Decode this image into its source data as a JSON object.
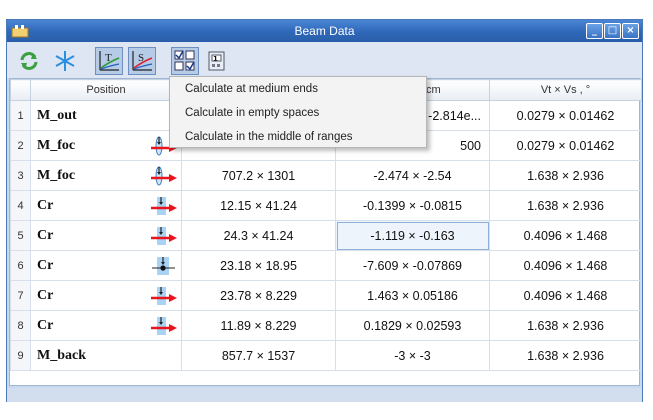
{
  "window": {
    "title": "Beam Data"
  },
  "titlebar_buttons": {
    "minimize": "_",
    "maximize": "□",
    "close": "×"
  },
  "toolbar": {
    "buttons": [
      {
        "icon": "refresh-icon"
      },
      {
        "icon": "snowflake-icon"
      },
      {
        "icon": "T-curve-icon",
        "pressed": true
      },
      {
        "icon": "S-curve-icon",
        "pressed": true
      },
      {
        "icon": "checkbox-grid-icon",
        "pressed": true
      },
      {
        "icon": "calculator-icon"
      }
    ]
  },
  "table": {
    "headers": [
      "",
      "Position",
      "",
      "cm",
      "Vt × Vs , °"
    ],
    "rows": [
      {
        "n": "1",
        "name": "M_out",
        "icon": "none",
        "c1": "",
        "c2": "-2.814e...",
        "c3": "0.0279 × 0.01462"
      },
      {
        "n": "2",
        "name": "M_foc",
        "icon": "lens-arrow",
        "c1": "",
        "c2": "500",
        "c3": "0.0279 × 0.01462"
      },
      {
        "n": "3",
        "name": "M_foc",
        "icon": "lens-arrow",
        "c1": "707.2 × 1301",
        "c2": "-2.474 × -2.54",
        "c3": "1.638 × 2.936"
      },
      {
        "n": "4",
        "name": "Cr",
        "icon": "crystal-arrow",
        "c1": "12.15 × 41.24",
        "c2": "-0.1399 × -0.0815",
        "c3": "1.638 × 2.936"
      },
      {
        "n": "5",
        "name": "Cr",
        "icon": "crystal-arrow",
        "c1": "24.3 × 41.24",
        "c2": "-1.119 × -0.163",
        "c3": "0.4096 × 1.468",
        "selected": true
      },
      {
        "n": "6",
        "name": "Cr",
        "icon": "crystal-dot",
        "c1": "23.18 × 18.95",
        "c2": "-7.609 × -0.07869",
        "c3": "0.4096 × 1.468"
      },
      {
        "n": "7",
        "name": "Cr",
        "icon": "crystal-arrow",
        "c1": "23.78 × 8.229",
        "c2": "1.463 × 0.05186",
        "c3": "0.4096 × 1.468"
      },
      {
        "n": "8",
        "name": "Cr",
        "icon": "crystal-arrow",
        "c1": "11.89 × 8.229",
        "c2": "0.1829 × 0.02593",
        "c3": "1.638 × 2.936"
      },
      {
        "n": "9",
        "name": "M_back",
        "icon": "none",
        "c1": "857.7 × 1537",
        "c2": "-3 × -3",
        "c3": "1.638 × 2.936"
      }
    ]
  },
  "context_menu": {
    "items": [
      "Calculate at medium ends",
      "Calculate in empty spaces",
      "Calculate in the middle of ranges"
    ]
  },
  "colors": {
    "titlebar": "#2f67b8",
    "arrow": "#e8141e",
    "crystal": "#7fb8e6"
  }
}
